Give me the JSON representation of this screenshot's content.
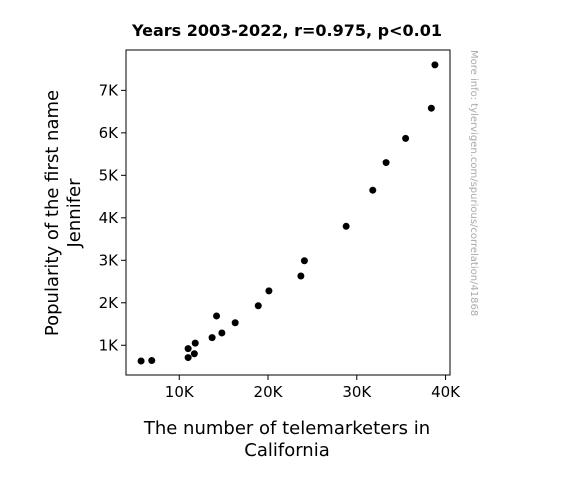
{
  "chart_data": {
    "type": "scatter",
    "title": "Years 2003-2022, r=0.975, p<0.01",
    "xlabel_lines": [
      "The number of telemarketers in",
      "California"
    ],
    "ylabel_lines": [
      "Popularity of the first name",
      "Jennifer"
    ],
    "side_note": "More info: tylervigen.com/spurious/correlation/41868",
    "xlim": [
      4000,
      40500
    ],
    "ylim": [
      300,
      7950
    ],
    "x_ticks": [
      {
        "value": 10000,
        "label": "10K"
      },
      {
        "value": 20000,
        "label": "20K"
      },
      {
        "value": 30000,
        "label": "30K"
      },
      {
        "value": 40000,
        "label": "40K"
      }
    ],
    "y_ticks": [
      {
        "value": 1000,
        "label": "1K"
      },
      {
        "value": 2000,
        "label": "2K"
      },
      {
        "value": 3000,
        "label": "3K"
      },
      {
        "value": 4000,
        "label": "4K"
      },
      {
        "value": 5000,
        "label": "5K"
      },
      {
        "value": 6000,
        "label": "6K"
      },
      {
        "value": 7000,
        "label": "7K"
      }
    ],
    "grid": false,
    "marker_color": "#000000",
    "points": [
      {
        "x": 5700,
        "y": 630
      },
      {
        "x": 6900,
        "y": 640
      },
      {
        "x": 11000,
        "y": 710
      },
      {
        "x": 11700,
        "y": 800
      },
      {
        "x": 11000,
        "y": 920
      },
      {
        "x": 11800,
        "y": 1050
      },
      {
        "x": 13700,
        "y": 1180
      },
      {
        "x": 14800,
        "y": 1290
      },
      {
        "x": 14200,
        "y": 1690
      },
      {
        "x": 16300,
        "y": 1530
      },
      {
        "x": 18900,
        "y": 1930
      },
      {
        "x": 20100,
        "y": 2280
      },
      {
        "x": 23700,
        "y": 2630
      },
      {
        "x": 24100,
        "y": 2990
      },
      {
        "x": 28800,
        "y": 3800
      },
      {
        "x": 31800,
        "y": 4650
      },
      {
        "x": 33300,
        "y": 5300
      },
      {
        "x": 35500,
        "y": 5870
      },
      {
        "x": 38400,
        "y": 6580
      },
      {
        "x": 38800,
        "y": 7600
      }
    ]
  }
}
